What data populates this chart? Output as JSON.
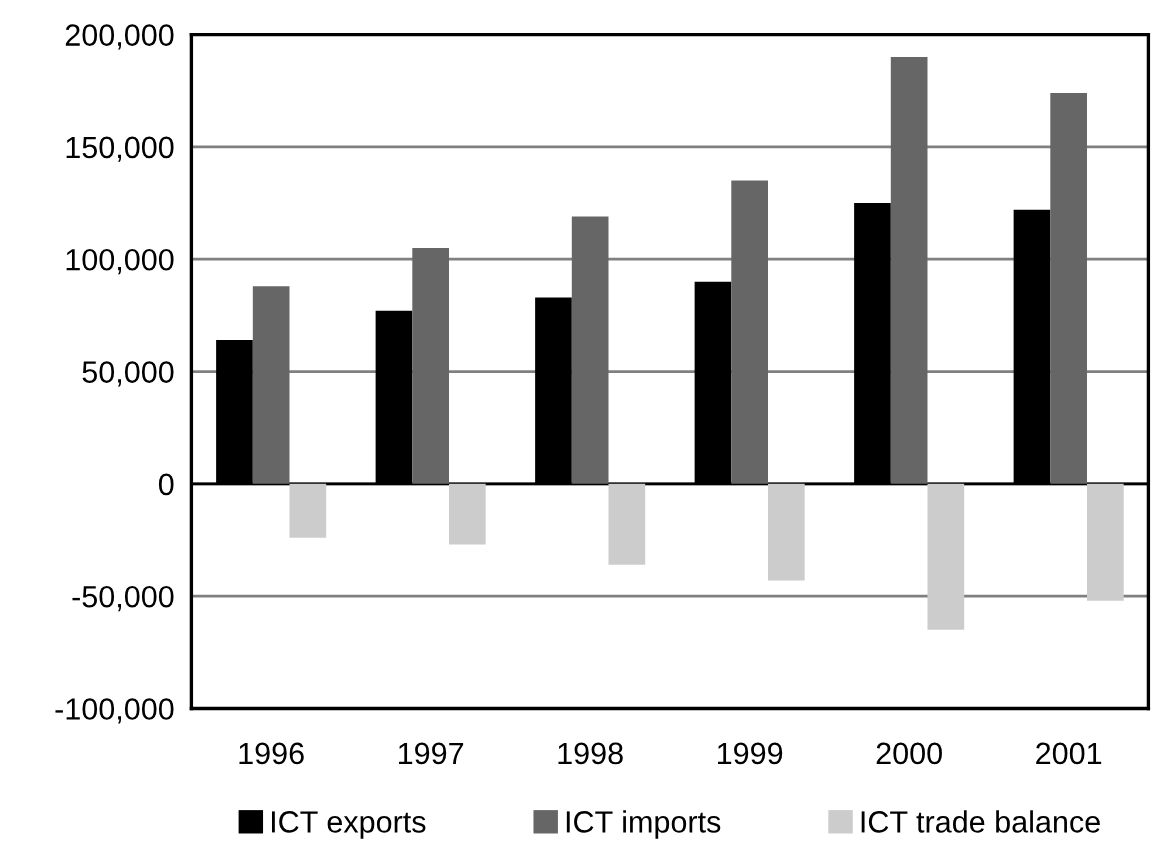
{
  "chart_data": {
    "type": "bar",
    "categories": [
      "1996",
      "1997",
      "1998",
      "1999",
      "2000",
      "2001"
    ],
    "series": [
      {
        "name": "ICT exports",
        "color": "#000000",
        "values": [
          64000,
          77000,
          83000,
          90000,
          125000,
          122000
        ]
      },
      {
        "name": "ICT imports",
        "color": "#666666",
        "values": [
          88000,
          105000,
          119000,
          135000,
          190000,
          174000
        ]
      },
      {
        "name": "ICT trade balance",
        "color": "#cccccc",
        "values": [
          -24000,
          -27000,
          -36000,
          -43000,
          -65000,
          -52000
        ]
      }
    ],
    "ylim": [
      -100000,
      200000
    ],
    "yticks": [
      {
        "value": -100000,
        "label": "-100,000"
      },
      {
        "value": -50000,
        "label": "-50,000"
      },
      0,
      {
        "value": 50000,
        "label": "50,000"
      },
      {
        "value": 100000,
        "label": "100,000"
      },
      {
        "value": 150000,
        "label": "150,000"
      },
      {
        "value": 200000,
        "label": "200,000"
      }
    ],
    "grid": "y",
    "legend": "bottom"
  }
}
